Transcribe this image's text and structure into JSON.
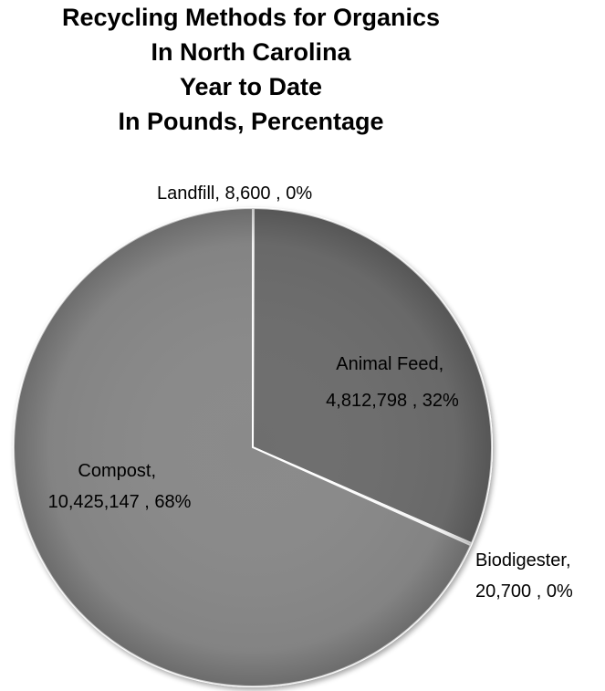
{
  "chart_data": {
    "type": "pie",
    "title_lines": [
      "Recycling Methods for Organics",
      "In North Carolina",
      "Year to Date",
      "In Pounds, Percentage"
    ],
    "slices": [
      {
        "category": "Landfill",
        "value": 8600,
        "value_label": "8,600",
        "percent_label": "0%",
        "color": "#7a7a7a"
      },
      {
        "category": "Animal Feed",
        "value": 4812798,
        "value_label": "4,812,798",
        "percent_label": "32%",
        "color": "#6e6e6e"
      },
      {
        "category": "Biodigester",
        "value": 20700,
        "value_label": "20,700",
        "percent_label": "0%",
        "color": "#858585"
      },
      {
        "category": "Compost",
        "value": 10425147,
        "value_label": "10,425,147",
        "percent_label": "68%",
        "color": "#8a8a8a"
      }
    ],
    "start_angle_deg": 0,
    "direction": "clockwise",
    "legend": "none"
  }
}
